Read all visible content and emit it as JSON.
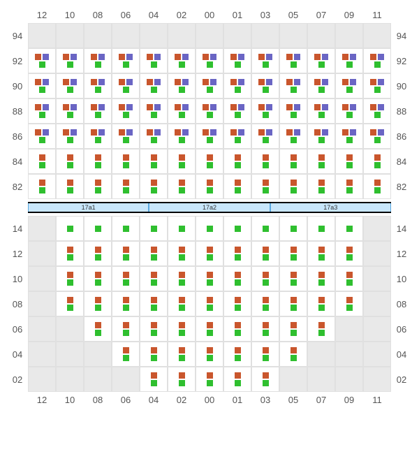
{
  "layout": {
    "columns": [
      "12",
      "10",
      "08",
      "06",
      "04",
      "02",
      "00",
      "01",
      "03",
      "05",
      "07",
      "09",
      "11"
    ],
    "colors": {
      "orange": "#c9562d",
      "green": "#2fbf2f",
      "purple": "#6a65c4",
      "grid_bg": "#e9e9e9",
      "cell_border": "#e0e0e0",
      "active_bg": "#ffffff"
    }
  },
  "topBlock": {
    "rows": [
      {
        "label": "94",
        "cells": [
          {
            "t": "empty"
          },
          {
            "t": "empty"
          },
          {
            "t": "empty"
          },
          {
            "t": "empty"
          },
          {
            "t": "empty"
          },
          {
            "t": "empty"
          },
          {
            "t": "empty"
          },
          {
            "t": "empty"
          },
          {
            "t": "empty"
          },
          {
            "t": "empty"
          },
          {
            "t": "empty"
          },
          {
            "t": "empty"
          },
          {
            "t": "empty"
          }
        ]
      },
      {
        "label": "92",
        "cells": [
          {
            "t": "A"
          },
          {
            "t": "A"
          },
          {
            "t": "A"
          },
          {
            "t": "A"
          },
          {
            "t": "A"
          },
          {
            "t": "A"
          },
          {
            "t": "A"
          },
          {
            "t": "A"
          },
          {
            "t": "A"
          },
          {
            "t": "A"
          },
          {
            "t": "A"
          },
          {
            "t": "A"
          },
          {
            "t": "A"
          }
        ]
      },
      {
        "label": "90",
        "cells": [
          {
            "t": "A"
          },
          {
            "t": "A"
          },
          {
            "t": "A"
          },
          {
            "t": "A"
          },
          {
            "t": "A"
          },
          {
            "t": "A"
          },
          {
            "t": "A"
          },
          {
            "t": "A"
          },
          {
            "t": "A"
          },
          {
            "t": "A"
          },
          {
            "t": "A"
          },
          {
            "t": "A"
          },
          {
            "t": "A"
          }
        ]
      },
      {
        "label": "88",
        "cells": [
          {
            "t": "A"
          },
          {
            "t": "A"
          },
          {
            "t": "A"
          },
          {
            "t": "A"
          },
          {
            "t": "A"
          },
          {
            "t": "A"
          },
          {
            "t": "A"
          },
          {
            "t": "A"
          },
          {
            "t": "A"
          },
          {
            "t": "A"
          },
          {
            "t": "A"
          },
          {
            "t": "A"
          },
          {
            "t": "A"
          }
        ]
      },
      {
        "label": "86",
        "cells": [
          {
            "t": "A"
          },
          {
            "t": "A"
          },
          {
            "t": "A"
          },
          {
            "t": "A"
          },
          {
            "t": "A"
          },
          {
            "t": "A"
          },
          {
            "t": "A"
          },
          {
            "t": "A"
          },
          {
            "t": "A"
          },
          {
            "t": "A"
          },
          {
            "t": "A"
          },
          {
            "t": "A"
          },
          {
            "t": "A"
          }
        ]
      },
      {
        "label": "84",
        "cells": [
          {
            "t": "B"
          },
          {
            "t": "B"
          },
          {
            "t": "B"
          },
          {
            "t": "B"
          },
          {
            "t": "B"
          },
          {
            "t": "B"
          },
          {
            "t": "B"
          },
          {
            "t": "B"
          },
          {
            "t": "B"
          },
          {
            "t": "B"
          },
          {
            "t": "B"
          },
          {
            "t": "B"
          },
          {
            "t": "B"
          }
        ]
      },
      {
        "label": "82",
        "cells": [
          {
            "t": "B"
          },
          {
            "t": "B"
          },
          {
            "t": "B"
          },
          {
            "t": "B"
          },
          {
            "t": "B"
          },
          {
            "t": "B"
          },
          {
            "t": "B"
          },
          {
            "t": "B"
          },
          {
            "t": "B"
          },
          {
            "t": "B"
          },
          {
            "t": "B"
          },
          {
            "t": "B"
          },
          {
            "t": "B"
          }
        ]
      }
    ]
  },
  "divider": {
    "segments": [
      "17a1",
      "17a2",
      "17a3"
    ]
  },
  "bottomBlock": {
    "rows": [
      {
        "label": "14",
        "cells": [
          {
            "t": "empty"
          },
          {
            "t": "G"
          },
          {
            "t": "G"
          },
          {
            "t": "G"
          },
          {
            "t": "G"
          },
          {
            "t": "G"
          },
          {
            "t": "G"
          },
          {
            "t": "G"
          },
          {
            "t": "G"
          },
          {
            "t": "G"
          },
          {
            "t": "G"
          },
          {
            "t": "G"
          },
          {
            "t": "empty"
          }
        ]
      },
      {
        "label": "12",
        "cells": [
          {
            "t": "empty"
          },
          {
            "t": "B"
          },
          {
            "t": "B"
          },
          {
            "t": "B"
          },
          {
            "t": "B"
          },
          {
            "t": "B"
          },
          {
            "t": "B"
          },
          {
            "t": "B"
          },
          {
            "t": "B"
          },
          {
            "t": "B"
          },
          {
            "t": "B"
          },
          {
            "t": "B"
          },
          {
            "t": "empty"
          }
        ]
      },
      {
        "label": "10",
        "cells": [
          {
            "t": "empty"
          },
          {
            "t": "B"
          },
          {
            "t": "B"
          },
          {
            "t": "B"
          },
          {
            "t": "B"
          },
          {
            "t": "B"
          },
          {
            "t": "B"
          },
          {
            "t": "B"
          },
          {
            "t": "B"
          },
          {
            "t": "B"
          },
          {
            "t": "B"
          },
          {
            "t": "B"
          },
          {
            "t": "empty"
          }
        ]
      },
      {
        "label": "08",
        "cells": [
          {
            "t": "empty"
          },
          {
            "t": "B"
          },
          {
            "t": "B"
          },
          {
            "t": "B"
          },
          {
            "t": "B"
          },
          {
            "t": "B"
          },
          {
            "t": "B"
          },
          {
            "t": "B"
          },
          {
            "t": "B"
          },
          {
            "t": "B"
          },
          {
            "t": "B"
          },
          {
            "t": "B"
          },
          {
            "t": "empty"
          }
        ]
      },
      {
        "label": "06",
        "cells": [
          {
            "t": "empty"
          },
          {
            "t": "empty"
          },
          {
            "t": "B"
          },
          {
            "t": "B"
          },
          {
            "t": "B"
          },
          {
            "t": "B"
          },
          {
            "t": "B"
          },
          {
            "t": "B"
          },
          {
            "t": "B"
          },
          {
            "t": "B"
          },
          {
            "t": "B"
          },
          {
            "t": "empty"
          },
          {
            "t": "empty"
          }
        ]
      },
      {
        "label": "04",
        "cells": [
          {
            "t": "empty"
          },
          {
            "t": "empty"
          },
          {
            "t": "empty"
          },
          {
            "t": "B"
          },
          {
            "t": "B"
          },
          {
            "t": "B"
          },
          {
            "t": "B"
          },
          {
            "t": "B"
          },
          {
            "t": "B"
          },
          {
            "t": "B"
          },
          {
            "t": "empty"
          },
          {
            "t": "empty"
          },
          {
            "t": "empty"
          }
        ]
      },
      {
        "label": "02",
        "cells": [
          {
            "t": "empty"
          },
          {
            "t": "empty"
          },
          {
            "t": "empty"
          },
          {
            "t": "empty"
          },
          {
            "t": "B"
          },
          {
            "t": "B"
          },
          {
            "t": "B"
          },
          {
            "t": "B"
          },
          {
            "t": "B"
          },
          {
            "t": "empty"
          },
          {
            "t": "empty"
          },
          {
            "t": "empty"
          },
          {
            "t": "empty"
          }
        ]
      }
    ]
  },
  "cellTypes": {
    "A": {
      "top": [
        "orange",
        "purple"
      ],
      "bottom": [
        "green"
      ]
    },
    "B": {
      "top": [
        "orange"
      ],
      "bottom": [
        "green"
      ]
    },
    "G": {
      "top": [
        "green"
      ],
      "bottom": []
    }
  }
}
